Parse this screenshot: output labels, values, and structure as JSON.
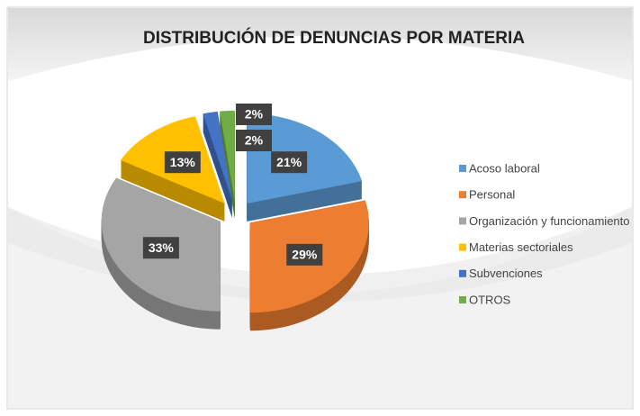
{
  "chart_data": {
    "type": "pie",
    "title": "DISTRIBUCIÓN DE DENUNCIAS POR MATERIA",
    "categories": [
      "Acoso laboral",
      "Personal",
      "Organización y funcionamiento",
      "Materias sectoriales",
      "Subvenciones",
      "OTROS"
    ],
    "values": [
      21,
      29,
      33,
      13,
      2,
      2
    ],
    "value_labels": [
      "21%",
      "29%",
      "33%",
      "13%",
      "2%",
      "2%"
    ],
    "colors": [
      "#5b9bd5",
      "#ed7d31",
      "#a5a5a5",
      "#ffc000",
      "#4472c4",
      "#70ad47"
    ],
    "legend": "right"
  }
}
